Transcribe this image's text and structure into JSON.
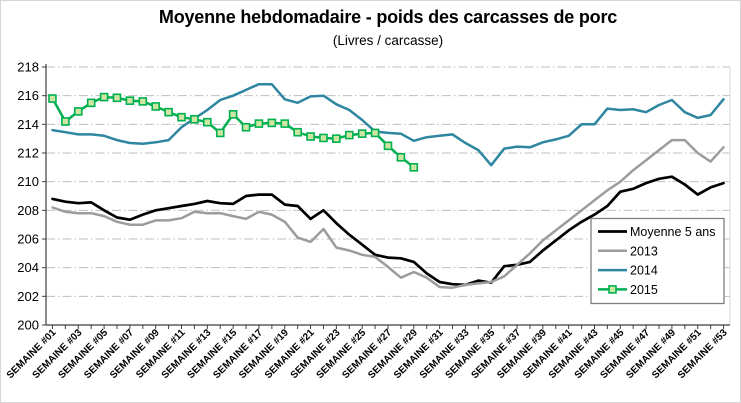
{
  "figure": {
    "title": "Moyenne hebdomadaire - poids des carcasses de porc",
    "subtitle": "(Livres / carcasse)"
  },
  "chart_data": {
    "type": "line",
    "title": "Moyenne hebdomadaire - poids des carcasses de porc",
    "subtitle": "(Livres / carcasse)",
    "x_unit": "semaine",
    "weeks_total": 53,
    "x_tick_labels": [
      "SEMAINE #01",
      "SEMAINE #03",
      "SEMAINE #05",
      "SEMAINE #07",
      "SEMAINE #09",
      "SEMAINE #11",
      "SEMAINE #13",
      "SEMAINE #15",
      "SEMAINE #17",
      "SEMAINE #19",
      "SEMAINE #21",
      "SEMAINE #23",
      "SEMAINE #25",
      "SEMAINE #27",
      "SEMAINE #29",
      "SEMAINE #31",
      "SEMAINE #33",
      "SEMAINE #35",
      "SEMAINE #37",
      "SEMAINE #39",
      "SEMAINE #41",
      "SEMAINE #43",
      "SEMAINE #45",
      "SEMAINE #47",
      "SEMAINE #49",
      "SEMAINE #51",
      "SEMAINE #53"
    ],
    "ylim": [
      200,
      218
    ],
    "ytick_step": 2,
    "ytick_labels": [
      "200",
      "202",
      "204",
      "206",
      "208",
      "210",
      "212",
      "214",
      "216",
      "218"
    ],
    "grid": true,
    "legend_position": "inside-lower-right",
    "series": [
      {
        "name": "Moyenne 5 ans",
        "color": "#000000",
        "stroke_width": 2.7,
        "marker": "none",
        "start_week": 1,
        "values": [
          208.8,
          208.6,
          208.5,
          208.55,
          208.0,
          207.5,
          207.35,
          207.7,
          208.0,
          208.15,
          208.3,
          208.45,
          208.65,
          208.5,
          208.45,
          209.0,
          209.1,
          209.1,
          208.4,
          208.3,
          207.4,
          208.0,
          207.1,
          206.3,
          205.6,
          204.9,
          204.7,
          204.65,
          204.4,
          203.6,
          203.0,
          202.85,
          202.8,
          203.1,
          202.95,
          204.1,
          204.2,
          204.4,
          205.2,
          205.9,
          206.6,
          207.2,
          207.7,
          208.3,
          209.3,
          209.5,
          209.9,
          210.2,
          210.35,
          209.8,
          209.1,
          209.6,
          209.9
        ]
      },
      {
        "name": "2013",
        "color": "#9C9C9C",
        "stroke_width": 2.5,
        "marker": "none",
        "start_week": 1,
        "values": [
          208.2,
          207.9,
          207.8,
          207.8,
          207.6,
          207.2,
          207.0,
          207.0,
          207.3,
          207.3,
          207.45,
          207.9,
          207.8,
          207.8,
          207.6,
          207.4,
          207.9,
          207.7,
          207.2,
          206.1,
          205.8,
          206.7,
          205.4,
          205.2,
          204.9,
          204.75,
          204.05,
          203.3,
          203.7,
          203.3,
          202.65,
          202.6,
          202.8,
          202.9,
          203.0,
          203.4,
          204.2,
          205.0,
          205.9,
          206.6,
          207.3,
          208.0,
          208.7,
          209.4,
          210.0,
          210.8,
          211.5,
          212.2,
          212.9,
          212.9,
          212.0,
          211.4,
          212.4
        ]
      },
      {
        "name": "2014",
        "color": "#2E86A0",
        "stroke_width": 2.5,
        "marker": "none",
        "start_week": 1,
        "values": [
          213.6,
          213.45,
          213.3,
          213.3,
          213.2,
          212.9,
          212.7,
          212.65,
          212.75,
          212.9,
          213.8,
          214.4,
          215.0,
          215.7,
          216.0,
          216.4,
          216.8,
          216.8,
          215.75,
          215.5,
          215.95,
          216.0,
          215.4,
          215.0,
          214.3,
          213.5,
          213.4,
          213.35,
          212.85,
          213.1,
          213.2,
          213.3,
          212.7,
          212.2,
          211.15,
          212.3,
          212.45,
          212.4,
          212.75,
          212.95,
          213.2,
          214.0,
          214.0,
          215.1,
          215.0,
          215.05,
          214.85,
          215.35,
          215.7,
          214.85,
          214.45,
          214.65,
          215.75
        ]
      },
      {
        "name": "2015",
        "color": "#00B050",
        "stroke_width": 2.5,
        "marker": "square",
        "marker_fill": "#CDE6A3",
        "marker_size": 7,
        "start_week": 1,
        "values": [
          215.8,
          214.2,
          214.9,
          215.5,
          215.9,
          215.85,
          215.65,
          215.6,
          215.25,
          214.85,
          214.5,
          214.35,
          214.15,
          213.4,
          214.7,
          213.8,
          214.05,
          214.1,
          214.05,
          213.45,
          213.15,
          213.05,
          213.0,
          213.25,
          213.35,
          213.4,
          212.5,
          211.7,
          211.0
        ]
      }
    ],
    "colors": {
      "gridline": "#BFBFBF",
      "axis": "#3f3f3f",
      "plot_right_border": "#D9D9D9",
      "legend_border": "#7F7F7F",
      "figure_border": "#D6D6D6",
      "background": "#FFFFFF"
    }
  }
}
